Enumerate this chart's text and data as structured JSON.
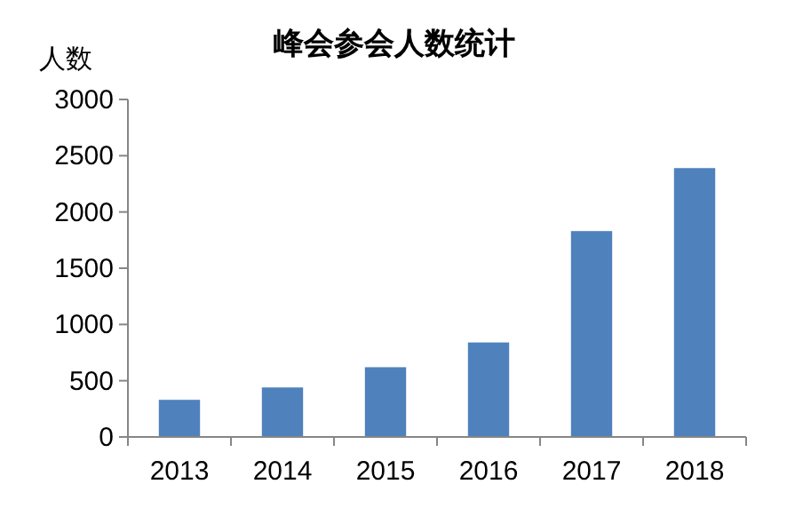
{
  "chart_data": {
    "type": "bar",
    "title": "峰会参会人数统计",
    "ylabel": "人数",
    "categories": [
      "2013",
      "2014",
      "2015",
      "2016",
      "2017",
      "2018"
    ],
    "values": [
      330,
      440,
      620,
      840,
      1830,
      2390
    ],
    "color": "#4f81bd",
    "ylim": [
      0,
      3000
    ],
    "yticks": [
      0,
      500,
      1000,
      1500,
      2000,
      2500,
      3000
    ],
    "grid": false
  }
}
